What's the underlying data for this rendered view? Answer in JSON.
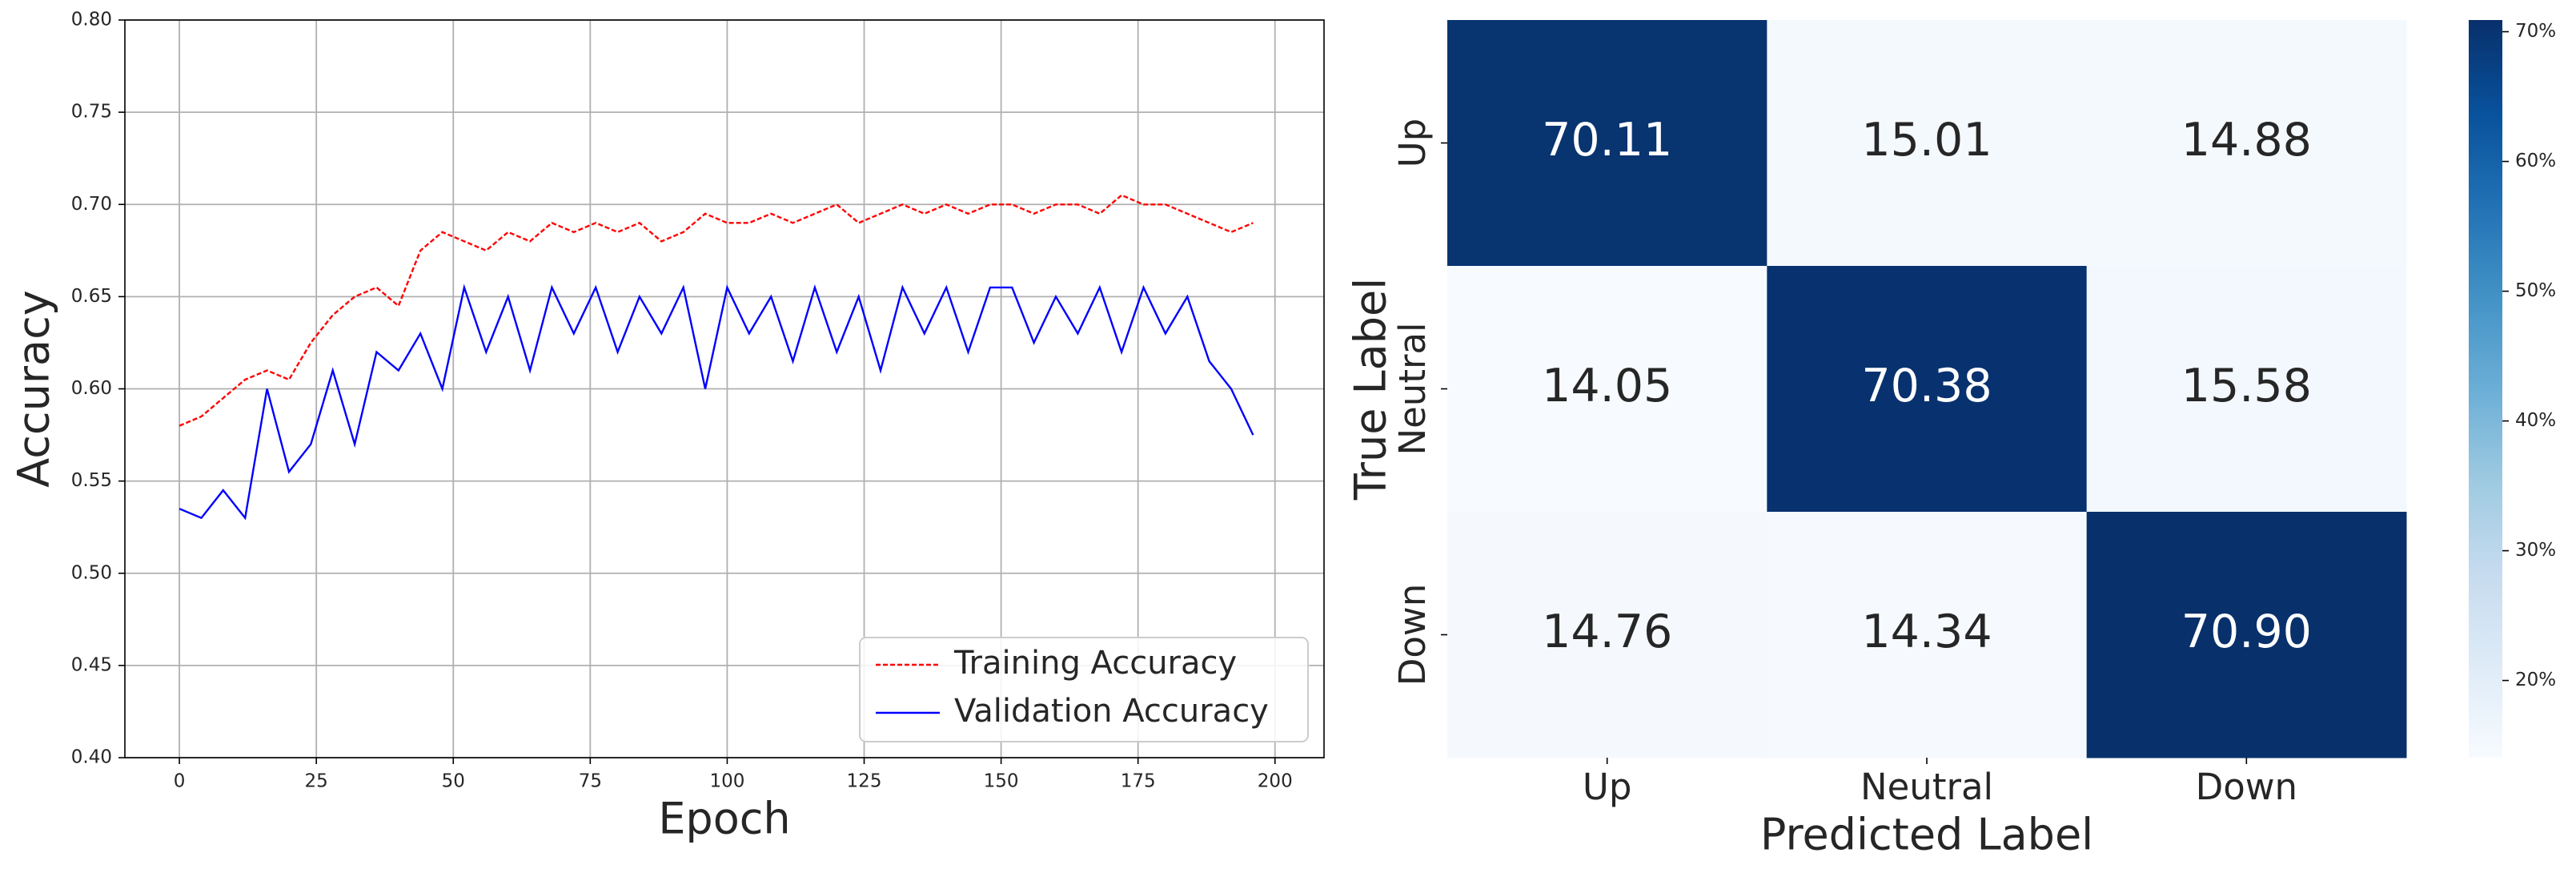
{
  "chart_data": [
    {
      "type": "line",
      "xlabel": "Epoch",
      "ylabel": "Accuracy",
      "x": [
        0,
        4,
        8,
        12,
        16,
        20,
        24,
        28,
        32,
        36,
        40,
        44,
        48,
        52,
        56,
        60,
        64,
        68,
        72,
        76,
        80,
        84,
        88,
        92,
        96,
        100,
        104,
        108,
        112,
        116,
        120,
        124,
        128,
        132,
        136,
        140,
        144,
        148,
        152,
        156,
        160,
        164,
        168,
        172,
        176,
        180,
        184,
        188,
        192,
        196
      ],
      "series": [
        {
          "name": "Training Accuracy",
          "color": "#ff0000",
          "dashed": true,
          "values": [
            0.58,
            0.585,
            0.595,
            0.605,
            0.61,
            0.605,
            0.625,
            0.64,
            0.65,
            0.655,
            0.645,
            0.675,
            0.685,
            0.68,
            0.675,
            0.685,
            0.68,
            0.69,
            0.685,
            0.69,
            0.685,
            0.69,
            0.68,
            0.685,
            0.695,
            0.69,
            0.69,
            0.695,
            0.69,
            0.695,
            0.7,
            0.69,
            0.695,
            0.7,
            0.695,
            0.7,
            0.695,
            0.7,
            0.7,
            0.695,
            0.7,
            0.7,
            0.695,
            0.705,
            0.7,
            0.7,
            0.695,
            0.69,
            0.685,
            0.69
          ]
        },
        {
          "name": "Validation Accuracy",
          "color": "#0000ff",
          "dashed": false,
          "values": [
            0.535,
            0.53,
            0.545,
            0.53,
            0.6,
            0.555,
            0.57,
            0.61,
            0.57,
            0.62,
            0.61,
            0.63,
            0.6,
            0.655,
            0.62,
            0.65,
            0.61,
            0.655,
            0.63,
            0.655,
            0.62,
            0.65,
            0.63,
            0.655,
            0.6,
            0.655,
            0.63,
            0.65,
            0.615,
            0.655,
            0.62,
            0.65,
            0.61,
            0.655,
            0.63,
            0.655,
            0.62,
            0.655,
            0.655,
            0.625,
            0.65,
            0.63,
            0.655,
            0.62,
            0.655,
            0.63,
            0.65,
            0.615,
            0.6,
            0.575
          ]
        }
      ],
      "xlim": [
        -9.95,
        208.95
      ],
      "xticks": [
        0,
        25,
        50,
        75,
        100,
        125,
        150,
        175,
        200
      ],
      "ylim": [
        0.4,
        0.8
      ],
      "yticks": [
        {
          "value": 0.4,
          "label": "0.40"
        },
        0.45,
        {
          "value": 0.5,
          "label": "0.50"
        },
        0.55,
        {
          "value": 0.6,
          "label": "0.60"
        },
        0.65,
        {
          "value": 0.7,
          "label": "0.70"
        },
        0.75,
        {
          "value": 0.8,
          "label": "0.80"
        }
      ],
      "grid": true,
      "legend": "lower right"
    },
    {
      "type": "heatmap",
      "xlabel": "Predicted Label",
      "ylabel": "True Label",
      "x_categories": [
        "Up",
        "Neutral",
        "Down"
      ],
      "y_categories": [
        "Up",
        "Neutral",
        "Down"
      ],
      "values": [
        [
          70.11,
          15.01,
          14.88
        ],
        [
          14.05,
          70.38,
          15.58
        ],
        [
          14.76,
          14.34,
          70.9
        ]
      ],
      "value_labels": [
        [
          "70.11",
          "15.01",
          "14.88"
        ],
        [
          "14.05",
          "70.38",
          "15.58"
        ],
        [
          "14.76",
          "14.34",
          "70.90"
        ]
      ],
      "clim": [
        14.05,
        70.9
      ],
      "colormap": [
        "#f7fbff",
        "#deebf7",
        "#c6dbef",
        "#9ecae1",
        "#6baed6",
        "#4292c6",
        "#2171b5",
        "#08519c",
        "#08306b"
      ],
      "colorbar_ticks": [
        {
          "value": 20,
          "label": "20%"
        },
        {
          "value": 30,
          "label": "30%"
        },
        {
          "value": 40,
          "label": "40%"
        },
        {
          "value": 50,
          "label": "50%"
        },
        {
          "value": 60,
          "label": "60%"
        },
        {
          "value": 70,
          "label": "70%"
        }
      ]
    }
  ]
}
